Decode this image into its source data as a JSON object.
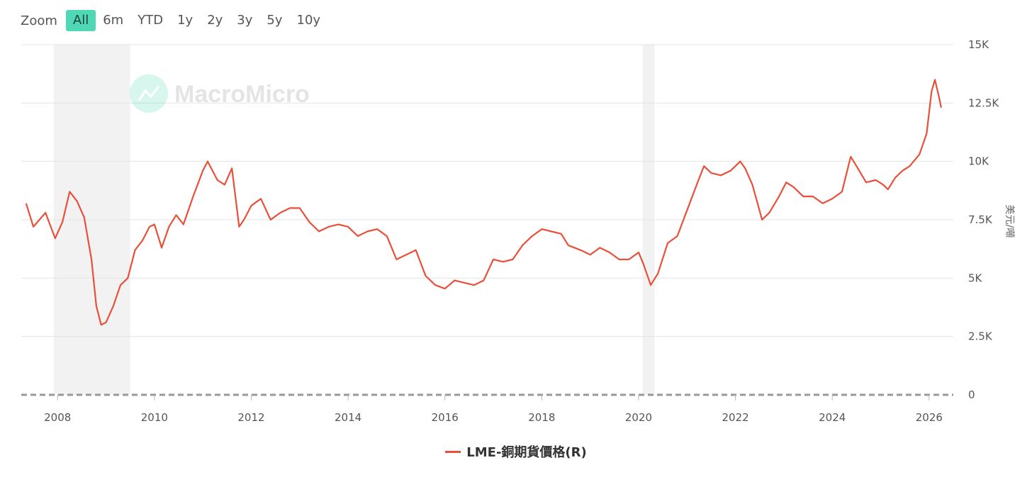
{
  "zoom": {
    "label": "Zoom",
    "options": [
      "All",
      "6m",
      "YTD",
      "1y",
      "2y",
      "3y",
      "5y",
      "10y"
    ],
    "selected": "All"
  },
  "watermark": "MacroMicro",
  "colors": {
    "series": "#e8503a",
    "accent": "#4fd8b6",
    "recession": "#f2f2f2"
  },
  "chart_data": {
    "type": "line",
    "title": "",
    "xlabel": "",
    "ylabel": "美元/噸",
    "y_axis_side": "right",
    "ylim": [
      0,
      15000
    ],
    "xlim": [
      2007.25,
      2026.5
    ],
    "x_ticks": [
      "2008",
      "2010",
      "2012",
      "2014",
      "2016",
      "2018",
      "2020",
      "2022",
      "2024",
      "2026"
    ],
    "y_ticks": [
      "0",
      "2.5K",
      "5K",
      "7.5K",
      "10K",
      "12.5K",
      "15K"
    ],
    "grid": true,
    "recession_bands": [
      [
        2007.92,
        2009.5
      ],
      [
        2020.08,
        2020.33
      ]
    ],
    "series": [
      {
        "name": "LME-銅期貨價格(R)",
        "x": [
          2007.35,
          2007.5,
          2007.75,
          2007.95,
          2008.1,
          2008.25,
          2008.4,
          2008.55,
          2008.7,
          2008.8,
          2008.9,
          2009.0,
          2009.15,
          2009.3,
          2009.45,
          2009.6,
          2009.75,
          2009.9,
          2010.0,
          2010.15,
          2010.3,
          2010.45,
          2010.6,
          2010.8,
          2011.0,
          2011.1,
          2011.3,
          2011.45,
          2011.6,
          2011.75,
          2011.85,
          2012.0,
          2012.2,
          2012.4,
          2012.6,
          2012.8,
          2013.0,
          2013.2,
          2013.4,
          2013.6,
          2013.8,
          2014.0,
          2014.2,
          2014.4,
          2014.6,
          2014.8,
          2015.0,
          2015.2,
          2015.4,
          2015.6,
          2015.8,
          2016.0,
          2016.2,
          2016.4,
          2016.6,
          2016.8,
          2017.0,
          2017.2,
          2017.4,
          2017.6,
          2017.8,
          2018.0,
          2018.2,
          2018.4,
          2018.55,
          2018.8,
          2019.0,
          2019.2,
          2019.4,
          2019.6,
          2019.8,
          2020.0,
          2020.1,
          2020.25,
          2020.4,
          2020.6,
          2020.8,
          2021.0,
          2021.2,
          2021.35,
          2021.5,
          2021.7,
          2021.9,
          2022.1,
          2022.2,
          2022.35,
          2022.55,
          2022.7,
          2022.9,
          2023.05,
          2023.2,
          2023.4,
          2023.6,
          2023.8,
          2024.0,
          2024.2,
          2024.38,
          2024.5,
          2024.7,
          2024.9,
          2025.05,
          2025.15,
          2025.3,
          2025.45,
          2025.6,
          2025.8,
          2025.95,
          2026.05,
          2026.12,
          2026.2,
          2026.25
        ],
        "values": [
          8200,
          7200,
          7800,
          6700,
          7400,
          8700,
          8300,
          7600,
          5800,
          3800,
          3000,
          3100,
          3800,
          4700,
          5000,
          6200,
          6600,
          7200,
          7300,
          6300,
          7200,
          7700,
          7300,
          8500,
          9600,
          10000,
          9200,
          9000,
          9700,
          7200,
          7500,
          8100,
          8400,
          7500,
          7800,
          8000,
          8000,
          7400,
          7000,
          7200,
          7300,
          7200,
          6800,
          7000,
          7100,
          6800,
          5800,
          6000,
          6200,
          5100,
          4700,
          4550,
          4900,
          4800,
          4700,
          4900,
          5800,
          5700,
          5800,
          6400,
          6800,
          7100,
          7000,
          6900,
          6400,
          6200,
          6000,
          6300,
          6100,
          5800,
          5800,
          6100,
          5600,
          4700,
          5200,
          6500,
          6800,
          7900,
          9000,
          9800,
          9500,
          9400,
          9600,
          10000,
          9700,
          9000,
          7500,
          7800,
          8500,
          9100,
          8900,
          8500,
          8500,
          8200,
          8400,
          8700,
          10200,
          9800,
          9100,
          9200,
          9000,
          8800,
          9300,
          9600,
          9800,
          10300,
          11200,
          13000,
          13500,
          12800,
          12300
        ]
      }
    ]
  }
}
